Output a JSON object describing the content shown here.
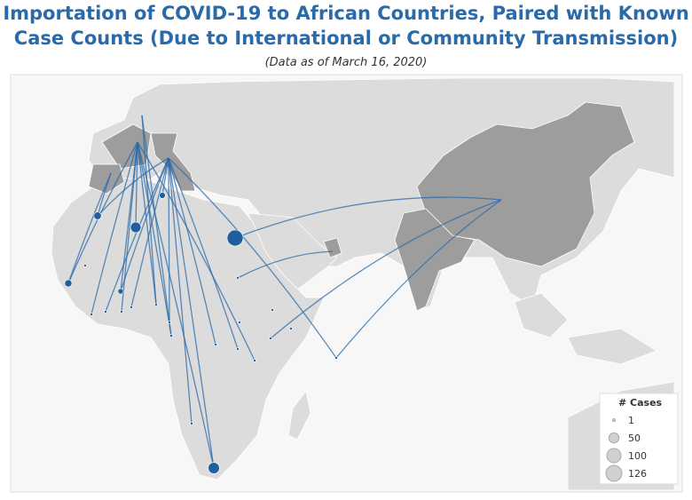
{
  "title": [
    "Importation of COVID-19 to African Countries, Paired with Known",
    "Case Counts (Due to International or Community Transmission)"
  ],
  "subtitle": "(Data as of March 16, 2020)",
  "legend": {
    "title": "# Cases",
    "sizes": [
      1,
      50,
      100,
      126
    ]
  },
  "map": {
    "cases": [
      126,
      62,
      54,
      28,
      26,
      18,
      15,
      1,
      2,
      3,
      2,
      3,
      2,
      1,
      4,
      2,
      2,
      1,
      3,
      3,
      3,
      1,
      1,
      1,
      1
    ]
  }
}
